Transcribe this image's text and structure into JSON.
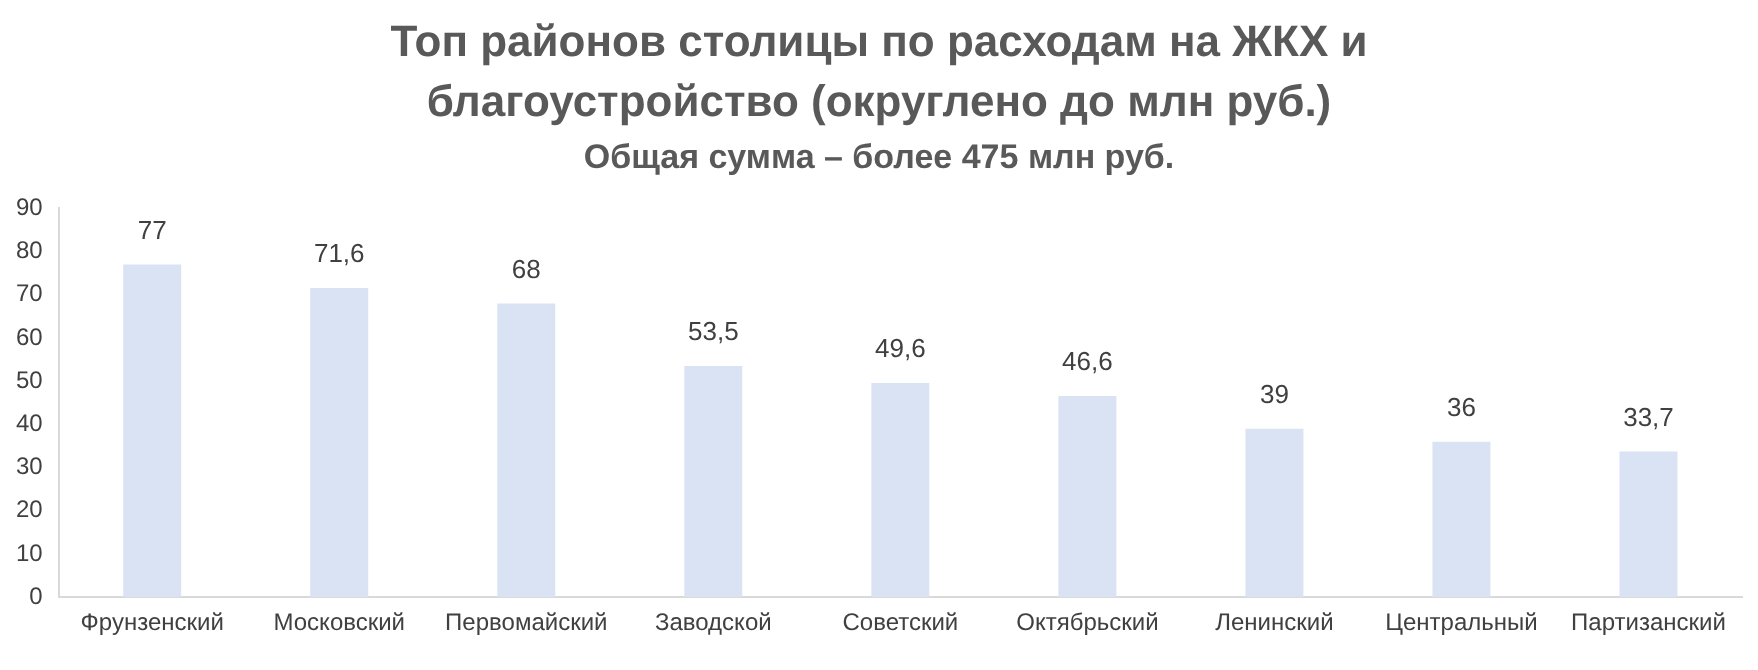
{
  "chart_data": {
    "type": "bar",
    "title": "Топ районов столицы по расходам на ЖКХ и благоустройство (округлено до млн руб.)",
    "subtitle": "Общая сумма – более 475 млн руб.",
    "categories": [
      "Фрунзенский",
      "Московский",
      "Первомайский",
      "Заводской",
      "Советский",
      "Октябрьский",
      "Ленинский",
      "Центральный",
      "Партизанский"
    ],
    "values": [
      77,
      71.6,
      68,
      53.5,
      49.6,
      46.6,
      39,
      36,
      33.7
    ],
    "value_labels": [
      "77",
      "71,6",
      "68",
      "53,5",
      "49,6",
      "46,6",
      "39",
      "36",
      "33,7"
    ],
    "color": "#dae3f3",
    "ylim": [
      0,
      90
    ],
    "yticks": [
      0,
      10,
      20,
      30,
      40,
      50,
      60,
      70,
      80,
      90
    ],
    "grid": false,
    "legend": false
  }
}
